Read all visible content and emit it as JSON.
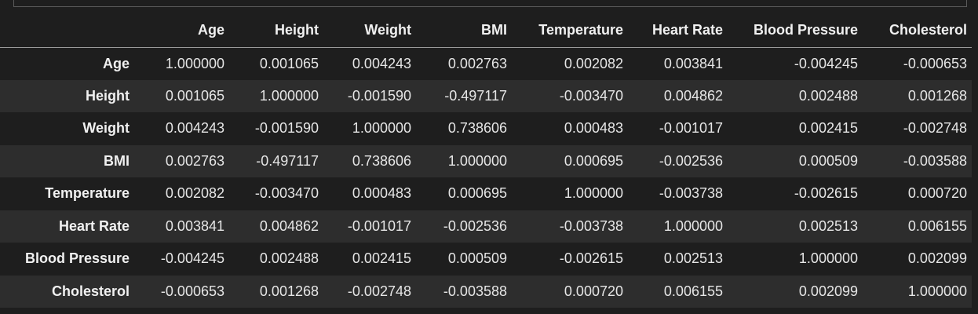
{
  "table": {
    "columns": [
      "Age",
      "Height",
      "Weight",
      "BMI",
      "Temperature",
      "Heart Rate",
      "Blood Pressure",
      "Cholesterol"
    ],
    "rows": [
      {
        "label": "Age",
        "values": [
          "1.000000",
          "0.001065",
          "0.004243",
          "0.002763",
          "0.002082",
          "0.003841",
          "-0.004245",
          "-0.000653"
        ]
      },
      {
        "label": "Height",
        "values": [
          "0.001065",
          "1.000000",
          "-0.001590",
          "-0.497117",
          "-0.003470",
          "0.004862",
          "0.002488",
          "0.001268"
        ]
      },
      {
        "label": "Weight",
        "values": [
          "0.004243",
          "-0.001590",
          "1.000000",
          "0.738606",
          "0.000483",
          "-0.001017",
          "0.002415",
          "-0.002748"
        ]
      },
      {
        "label": "BMI",
        "values": [
          "0.002763",
          "-0.497117",
          "0.738606",
          "1.000000",
          "0.000695",
          "-0.002536",
          "0.000509",
          "-0.003588"
        ]
      },
      {
        "label": "Temperature",
        "values": [
          "0.002082",
          "-0.003470",
          "0.000483",
          "0.000695",
          "1.000000",
          "-0.003738",
          "-0.002615",
          "0.000720"
        ]
      },
      {
        "label": "Heart Rate",
        "values": [
          "0.003841",
          "0.004862",
          "-0.001017",
          "-0.002536",
          "-0.003738",
          "1.000000",
          "0.002513",
          "0.006155"
        ]
      },
      {
        "label": "Blood Pressure",
        "values": [
          "-0.004245",
          "0.002488",
          "0.002415",
          "0.000509",
          "-0.002615",
          "0.002513",
          "1.000000",
          "0.002099"
        ]
      },
      {
        "label": "Cholesterol",
        "values": [
          "-0.000653",
          "0.001268",
          "-0.002748",
          "-0.003588",
          "0.000720",
          "0.006155",
          "0.002099",
          "1.000000"
        ]
      }
    ]
  },
  "colors": {
    "background": "#1e1e1e",
    "stripe": "#2d2d2d",
    "text": "#e6e6e6"
  }
}
